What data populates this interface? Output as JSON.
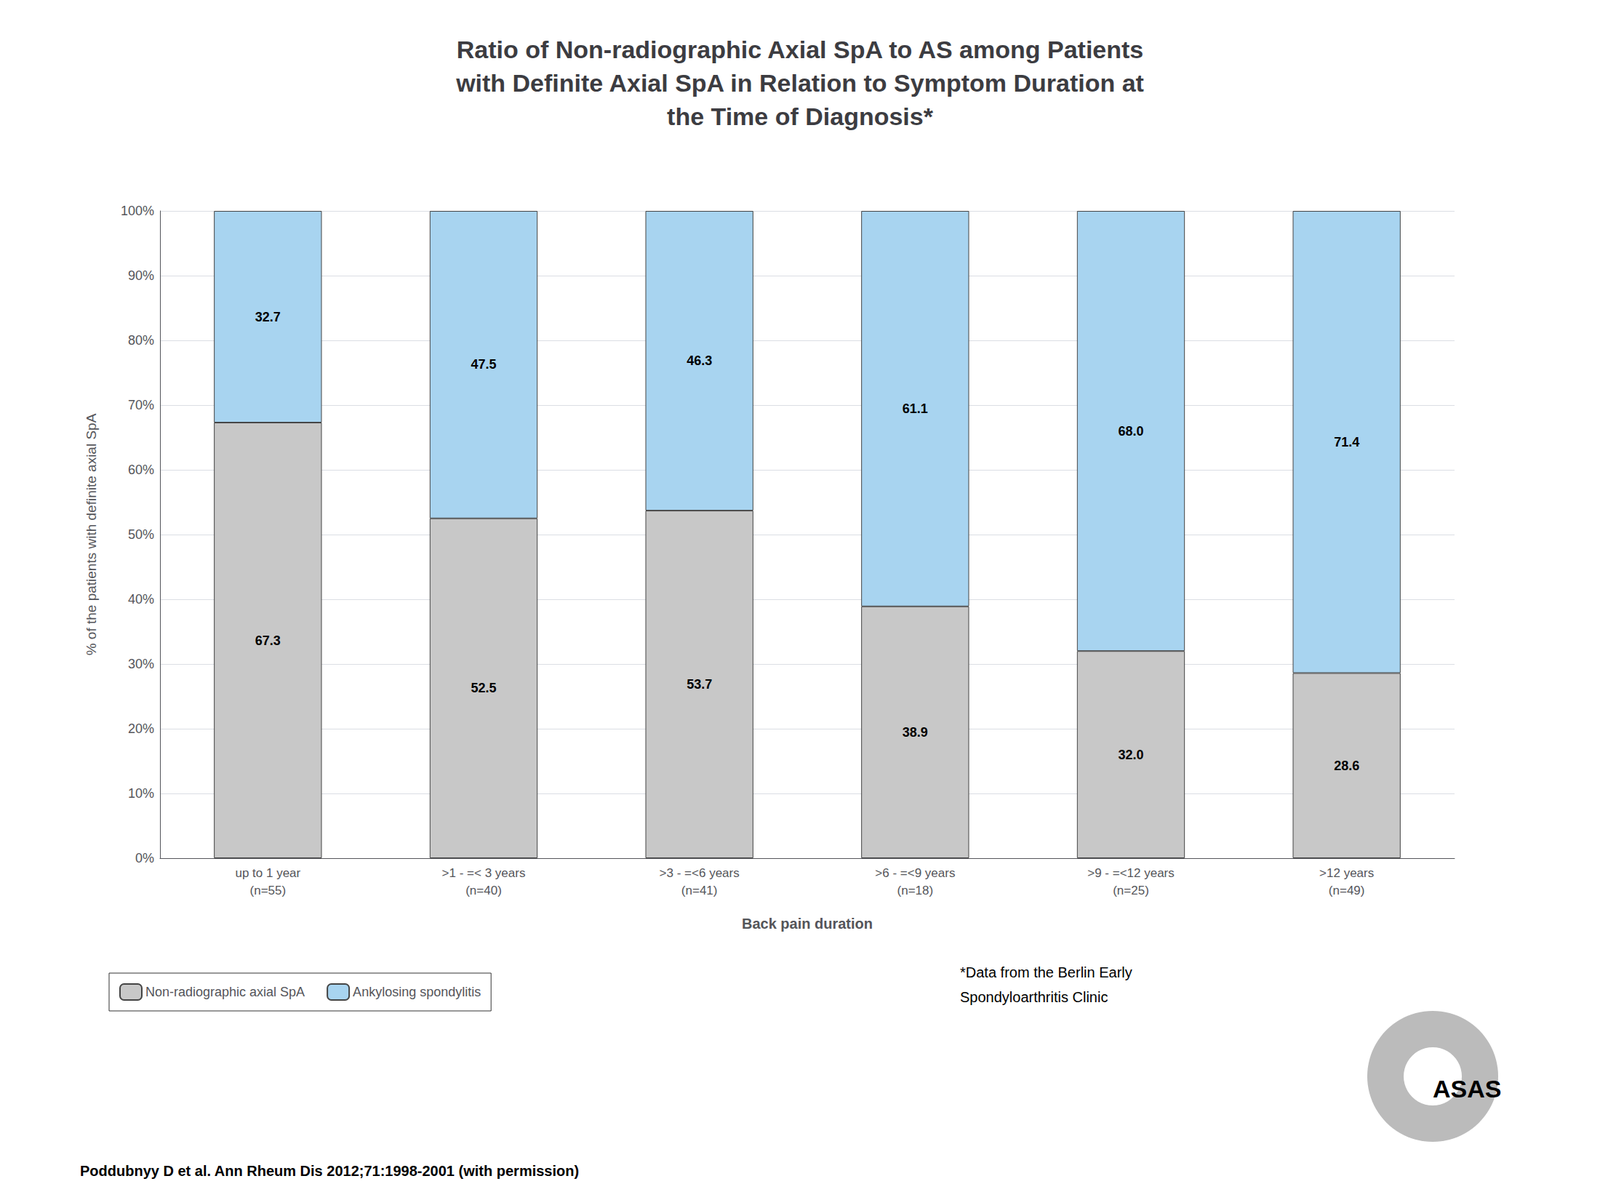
{
  "chart_data": {
    "type": "bar",
    "title": "Ratio of Non-radiographic Axial SpA to AS among Patients\nwith Definite Axial SpA in Relation to Symptom Duration at\nthe Time of Diagnosis*",
    "x_label": "Back pain duration",
    "y_label": "% of the patients with definite axial SpA",
    "categories": [
      "up to 1 year\n(n=55)",
      ">1 - =< 3 years\n(n=40)",
      ">3 - =<6 years\n(n=41)",
      ">6 - =<9 years\n(n=18)",
      ">9 - =<12 years\n(n=25)",
      ">12 years\n(n=49)"
    ],
    "series": [
      {
        "name": "Non-radiographic axial SpA",
        "color": "#C8C8C8",
        "values": [
          67.3,
          52.5,
          53.7,
          38.9,
          32.0,
          28.6
        ],
        "value_labels": [
          "67.3",
          "52.5",
          "53.7",
          "38.9",
          "32.0",
          "28.6"
        ]
      },
      {
        "name": "Ankylosing spondylitis",
        "color": "#A8D4F0",
        "values": [
          32.7,
          47.5,
          46.3,
          61.1,
          68.0,
          71.4
        ],
        "value_labels": [
          "32.7",
          "47.5",
          "46.3",
          "61.1",
          "68.0",
          "71.4"
        ]
      }
    ],
    "stacked": true,
    "data_labels": true,
    "ylim": [
      0,
      100
    ],
    "yticks": [
      {
        "value": 0,
        "label": "0%"
      },
      {
        "value": 10,
        "label": "10%"
      },
      {
        "value": 20,
        "label": "20%"
      },
      {
        "value": 30,
        "label": "30%"
      },
      {
        "value": 40,
        "label": "40%"
      },
      {
        "value": 50,
        "label": "50%"
      },
      {
        "value": 60,
        "label": "60%"
      },
      {
        "value": 70,
        "label": "70%"
      },
      {
        "value": 80,
        "label": "80%"
      },
      {
        "value": 90,
        "label": "90%"
      },
      {
        "value": 100,
        "label": "100%"
      }
    ],
    "grid": true,
    "legend": "bottom",
    "annotations": [
      "*Data from the Berlin Early\nSpondyloarthritis Clinic",
      "ASAS",
      "Poddubnyy D et al. Ann Rheum Dis 2012;71:1998-2001 (with permission)"
    ]
  }
}
